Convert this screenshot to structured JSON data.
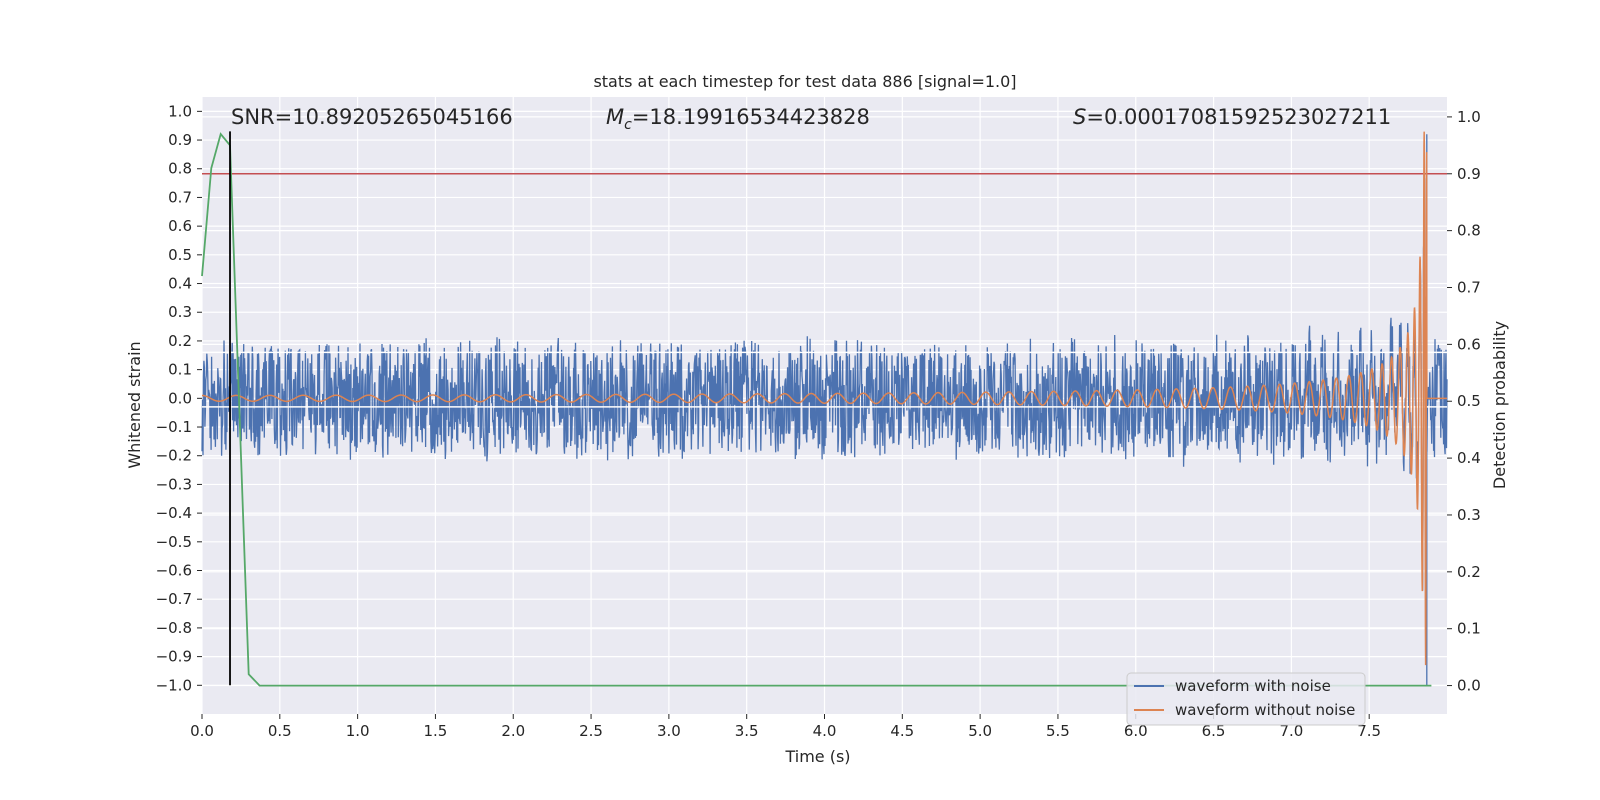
{
  "chart_data": {
    "type": "line",
    "title": "stats at each timestep for test data 886 [signal=1.0]",
    "xlabel": "Time (s)",
    "ylabel": "Whitened strain",
    "y2label": "Detection probability",
    "xlim": [
      0.0,
      8.0
    ],
    "ylim": [
      -1.1,
      1.05
    ],
    "y2lim": [
      -0.05,
      1.035
    ],
    "xticks": [
      "0.0",
      "0.5",
      "1.0",
      "1.5",
      "2.0",
      "2.5",
      "3.0",
      "3.5",
      "4.0",
      "4.5",
      "5.0",
      "5.5",
      "6.0",
      "6.5",
      "7.0",
      "7.5"
    ],
    "yticks": [
      "1.0",
      "0.9",
      "0.8",
      "0.7",
      "0.6",
      "0.5",
      "0.4",
      "0.3",
      "0.2",
      "0.1",
      "0.0",
      "−0.1",
      "−0.2",
      "−0.3",
      "−0.4",
      "−0.5",
      "−0.6",
      "−0.7",
      "−0.8",
      "−0.9",
      "−1.0"
    ],
    "y2ticks": [
      "1.0",
      "0.9",
      "0.8",
      "0.7",
      "0.6",
      "0.5",
      "0.4",
      "0.3",
      "0.2",
      "0.1",
      "0.0"
    ],
    "grid": true,
    "legend_placement": "lower-right",
    "colors": {
      "noise": "#4c72b0",
      "clean": "#dd8452",
      "probability": "#55a868",
      "threshold": "#c44e52",
      "marker": "#000000",
      "background": "#eaeaf2"
    },
    "annotations": {
      "snr": "SNR=10.89205265045166",
      "mc_symbol": "M",
      "mc_sub": "c",
      "mc_value": "=18.19916534423828",
      "s_symbol": "S",
      "s_value": "=0.00017081592523027211"
    },
    "series": [
      {
        "name": "waveform with noise",
        "kind": "noise",
        "x_range": [
          0.0,
          8.0
        ],
        "envelope": 0.22,
        "peak_time": 7.87,
        "peak_value": 0.92,
        "trough_value": -0.8
      },
      {
        "name": "waveform without noise",
        "kind": "chirp",
        "x_range": [
          0.0,
          8.0
        ],
        "merger_time": 7.87,
        "start_amplitude": 0.01,
        "peak_value": 0.93
      },
      {
        "name": "",
        "kind": "probability",
        "axis": "y2",
        "x": [
          0.0,
          0.06,
          0.12,
          0.18,
          0.3,
          0.37,
          7.9
        ],
        "y": [
          0.72,
          0.91,
          0.97,
          0.95,
          0.02,
          0.0,
          0.0
        ]
      }
    ],
    "horizontal_lines": [
      {
        "axis": "y2",
        "value": 0.9,
        "color": "threshold"
      },
      {
        "axis": "y",
        "value": 0.16,
        "color": "#ffffff"
      },
      {
        "axis": "y",
        "value": -0.03,
        "color": "#ffffff"
      }
    ],
    "vertical_line": {
      "x": 0.18,
      "y_range": [
        -1.0,
        0.93
      ]
    }
  }
}
